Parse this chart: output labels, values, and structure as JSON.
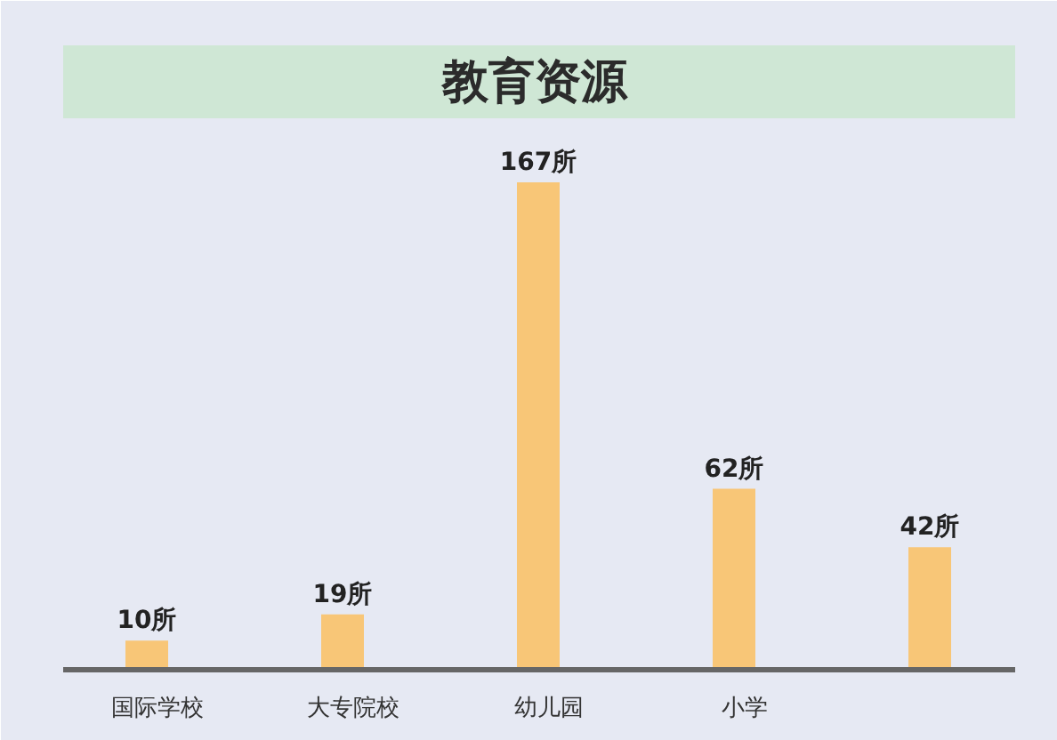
{
  "chart_data": {
    "type": "bar",
    "title": "教育资源",
    "categories": [
      "国际学校",
      "大专院校",
      "幼儿园",
      "小学",
      null
    ],
    "values": [
      10,
      19,
      167,
      62,
      42
    ],
    "value_labels": [
      "10所",
      "19所",
      "167所",
      "62所",
      "42所"
    ],
    "color": "#f8c677"
  }
}
